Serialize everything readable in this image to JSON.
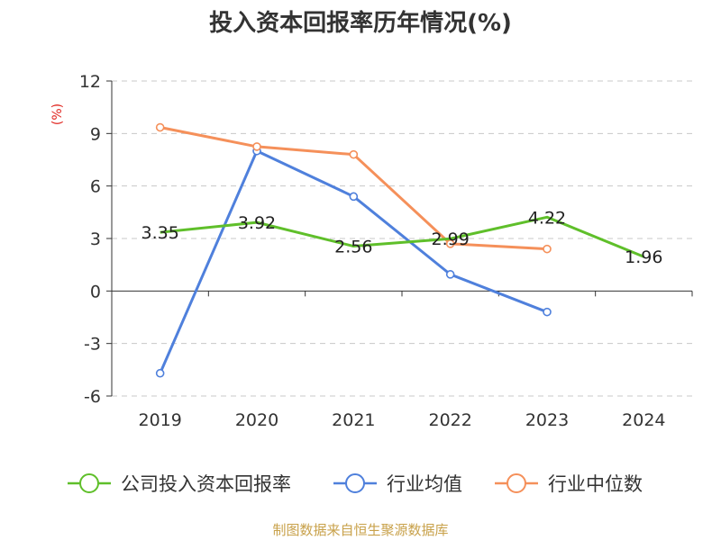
{
  "chart_data": {
    "type": "line",
    "title": "投入资本回报率历年情况(%)",
    "unit_label": "(%)",
    "categories": [
      "2019",
      "2020",
      "2021",
      "2022",
      "2023",
      "2024"
    ],
    "ylim": [
      -6,
      12
    ],
    "yticks": [
      -6,
      -3,
      0,
      3,
      6,
      9,
      12
    ],
    "grid": true,
    "legend_position": "bottom",
    "series": [
      {
        "name": "公司投入资本回报率",
        "color": "#5fbf2a",
        "values": [
          3.35,
          3.92,
          2.56,
          2.99,
          4.22,
          1.96
        ],
        "labels": [
          "3.35",
          "3.92",
          "2.56",
          "2.99",
          "4.22",
          "1.96"
        ]
      },
      {
        "name": "行业均值",
        "color": "#4f80dc",
        "values": [
          -4.7,
          8.0,
          5.4,
          0.95,
          -1.2,
          null
        ]
      },
      {
        "name": "行业中位数",
        "color": "#f5905a",
        "values": [
          9.35,
          8.25,
          7.8,
          2.7,
          2.4,
          null
        ]
      }
    ],
    "source": "制图数据来自恒生聚源数据库"
  }
}
